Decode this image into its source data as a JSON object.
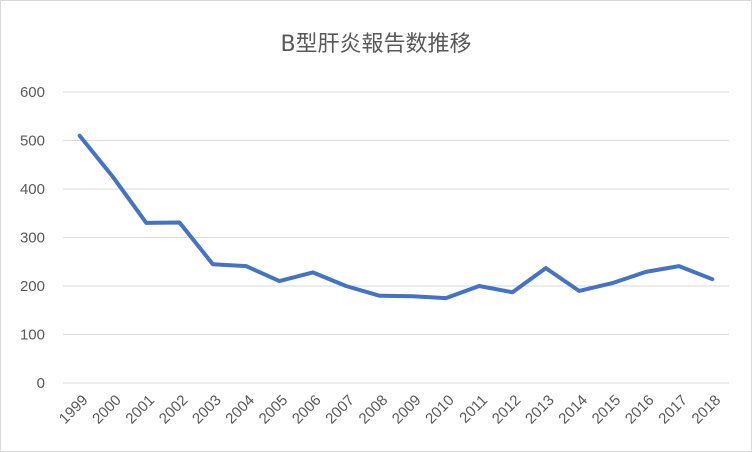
{
  "chart_data": {
    "type": "line",
    "title": "B型肝炎報告数推移",
    "xlabel": "",
    "ylabel": "",
    "categories": [
      "1999",
      "2000",
      "2001",
      "2002",
      "2003",
      "2004",
      "2005",
      "2006",
      "2007",
      "2008",
      "2009",
      "2010",
      "2011",
      "2012",
      "2013",
      "2014",
      "2015",
      "2016",
      "2017",
      "2018"
    ],
    "values": [
      510,
      425,
      330,
      331,
      245,
      241,
      210,
      228,
      200,
      180,
      179,
      175,
      200,
      187,
      237,
      190,
      206,
      229,
      241,
      214
    ],
    "yticks": [
      "0",
      "100",
      "200",
      "300",
      "400",
      "500",
      "600"
    ],
    "ylim": [
      0,
      600
    ],
    "grid": true,
    "legend": "none",
    "colors": {
      "series": "#4472c4",
      "grid": "#d9d9d9",
      "text": "#595959"
    }
  }
}
